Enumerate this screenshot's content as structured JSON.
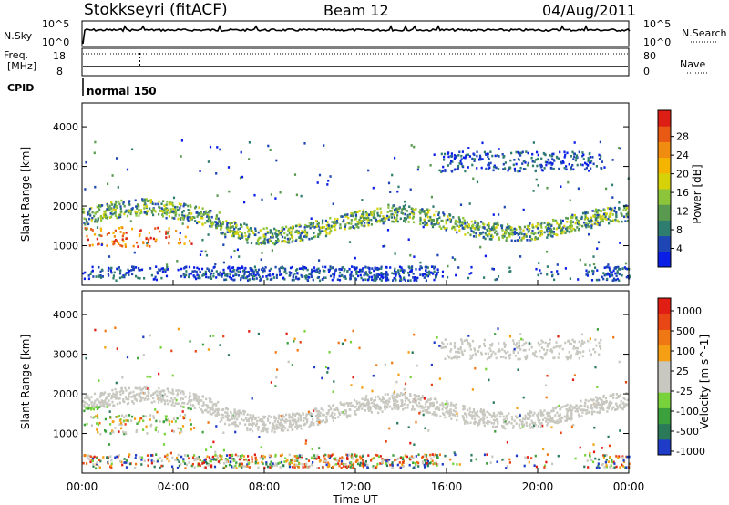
{
  "header": {
    "station": "Stokkseyri (fitACF)",
    "beam": "Beam 12",
    "date": "04/Aug/2011"
  },
  "noise_panel": {
    "left_label": "N.Sky",
    "right_label": "N.Search",
    "left_ticks": [
      "10^5",
      "10^0"
    ],
    "right_ticks": [
      "10^5",
      "10^0"
    ]
  },
  "freq_panel": {
    "left_label_line1": "Freq.",
    "left_label_line2": "[MHz]",
    "right_label": "Nave",
    "left_ticks": [
      "18",
      "8"
    ],
    "right_ticks": [
      "80",
      "0"
    ]
  },
  "cpid_panel": {
    "label": "CPID",
    "value": "normal 150"
  },
  "chart_data": [
    {
      "type": "heatmap",
      "title": "",
      "ylabel": "Slant Range [km]",
      "ylim": [
        0,
        4600
      ],
      "yticks": [
        "1000",
        "2000",
        "3000",
        "4000"
      ],
      "colorbar_label": "Power [dB]",
      "colorbar_ticks": [
        "4",
        "8",
        "12",
        "16",
        "20",
        "24",
        "28"
      ],
      "colorbar_colors": [
        "#0a1ee6",
        "#1e46b4",
        "#2f7d6e",
        "#5a9a50",
        "#8cc43a",
        "#d6d20a",
        "#f5b400",
        "#f08c10",
        "#e85a14",
        "#dc1e14"
      ]
    },
    {
      "type": "heatmap",
      "title": "",
      "ylabel": "Slant Range [km]",
      "ylim": [
        0,
        4600
      ],
      "yticks": [
        "1000",
        "2000",
        "3000",
        "4000"
      ],
      "colorbar_label": "Velocity [m s^-1]",
      "colorbar_ticks": [
        "1000",
        "500",
        "100",
        "25",
        "-25",
        "-100",
        "-500",
        "-1000"
      ],
      "colorbar_colors": [
        "#1e3cc8",
        "#2a7a5a",
        "#3ca03c",
        "#78d23c",
        "#c8c8c0",
        "#c8c8c0",
        "#f5a014",
        "#f07814",
        "#e84614",
        "#e01e14"
      ]
    }
  ],
  "xaxis": {
    "label": "Time UT",
    "ticks": [
      "00:00",
      "04:00",
      "08:00",
      "12:00",
      "16:00",
      "20:00",
      "00:00"
    ]
  }
}
